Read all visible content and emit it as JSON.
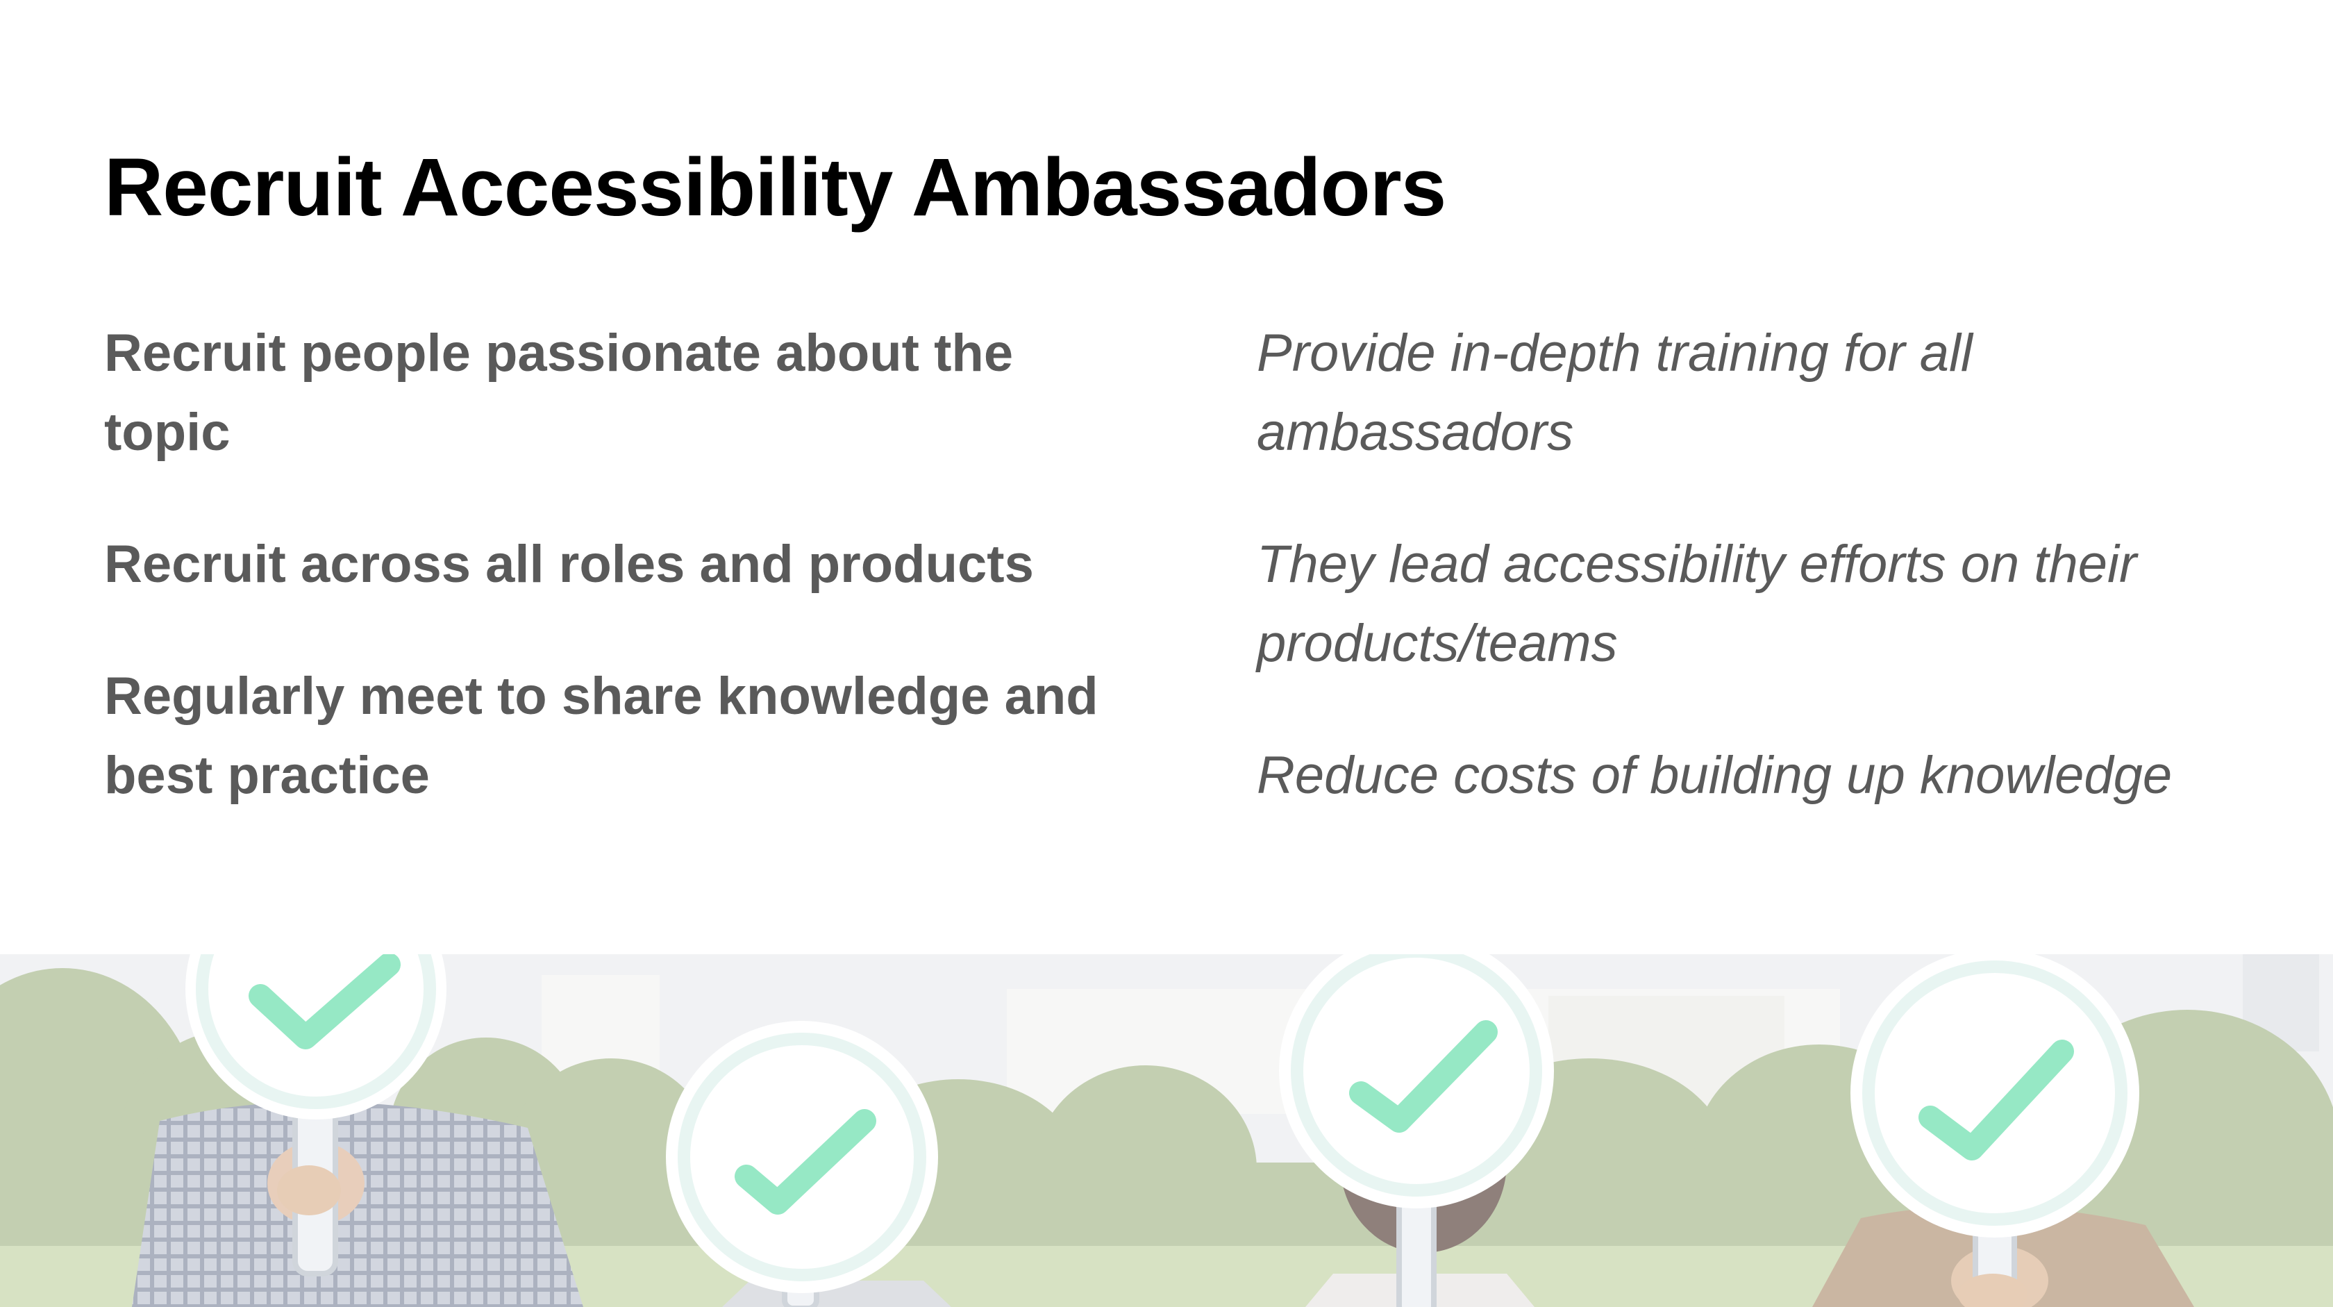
{
  "slide": {
    "title": "Recruit Accessibility Ambassadors",
    "left_items": [
      "Recruit people passionate about the topic",
      "Recruit across all roles and products",
      "Regularly meet to share knowledge and best practice"
    ],
    "right_items": [
      "Provide in-depth training for all ambassadors",
      "They lead accessibility efforts on their products/teams",
      "Reduce costs of building up knowledge"
    ]
  },
  "photo": {
    "icon": "check-sign-icon",
    "check_color": "#7fe3b9",
    "sign_count": 4
  }
}
